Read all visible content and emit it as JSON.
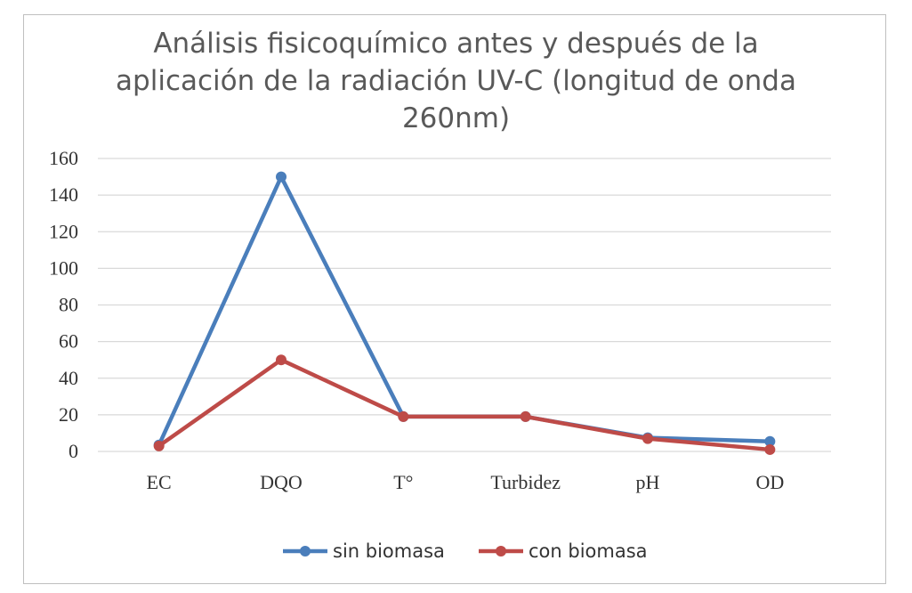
{
  "chart_data": {
    "type": "line",
    "title_lines": [
      "Análisis fisicoquímico antes y después de la",
      "aplicación de la radiación UV-C (longitud de onda",
      "260nm)"
    ],
    "categories": [
      "EC",
      "DQO",
      "T°",
      "Turbidez",
      "pH",
      "OD"
    ],
    "ylim": [
      0,
      160
    ],
    "yticks": [
      0,
      20,
      40,
      60,
      80,
      100,
      120,
      140,
      160
    ],
    "grid": true,
    "legend_position": "bottom",
    "series": [
      {
        "name": "sin biomasa",
        "color": "#4a7ebb",
        "values": [
          3.5,
          150,
          19,
          19,
          7.5,
          5.5
        ]
      },
      {
        "name": "con biomasa",
        "color": "#be4b48",
        "values": [
          3,
          50,
          19,
          19,
          7,
          1
        ]
      }
    ]
  }
}
